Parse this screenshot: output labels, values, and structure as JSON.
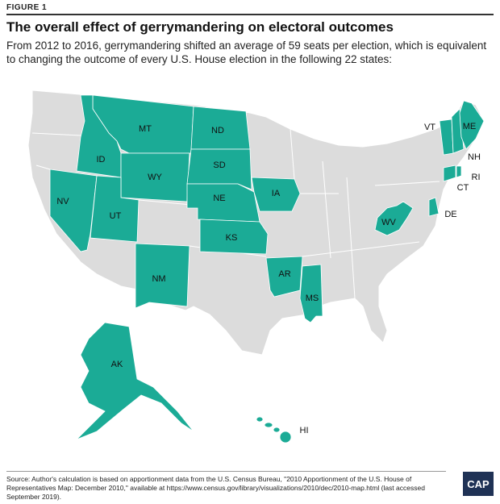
{
  "header": {
    "figure_label": "FIGURE 1",
    "title": "The overall effect of gerrymandering on electoral outcomes",
    "subtitle": "From 2012 to 2016, gerrymandering shifted an average of 59 seats per election, which is equivalent to changing the outcome of every U.S. House election in the following 22 states:"
  },
  "map": {
    "highlighted_states": [
      "MT",
      "ND",
      "ID",
      "WY",
      "SD",
      "NV",
      "NE",
      "IA",
      "UT",
      "KS",
      "NM",
      "AR",
      "MS",
      "WV",
      "AK",
      "HI",
      "VT",
      "ME",
      "NH",
      "RI",
      "CT",
      "DE"
    ]
  },
  "footer": {
    "source": "Source: Author's calculation is based on apportionment data from the U.S. Census Bureau, \"2010 Apportionment of the U.S. House of Representatives Map: December 2010,\" available at https://www.census.gov/library/visualizations/2010/dec/2010-map.html (last accessed September 2019).",
    "logo": "CAP"
  }
}
